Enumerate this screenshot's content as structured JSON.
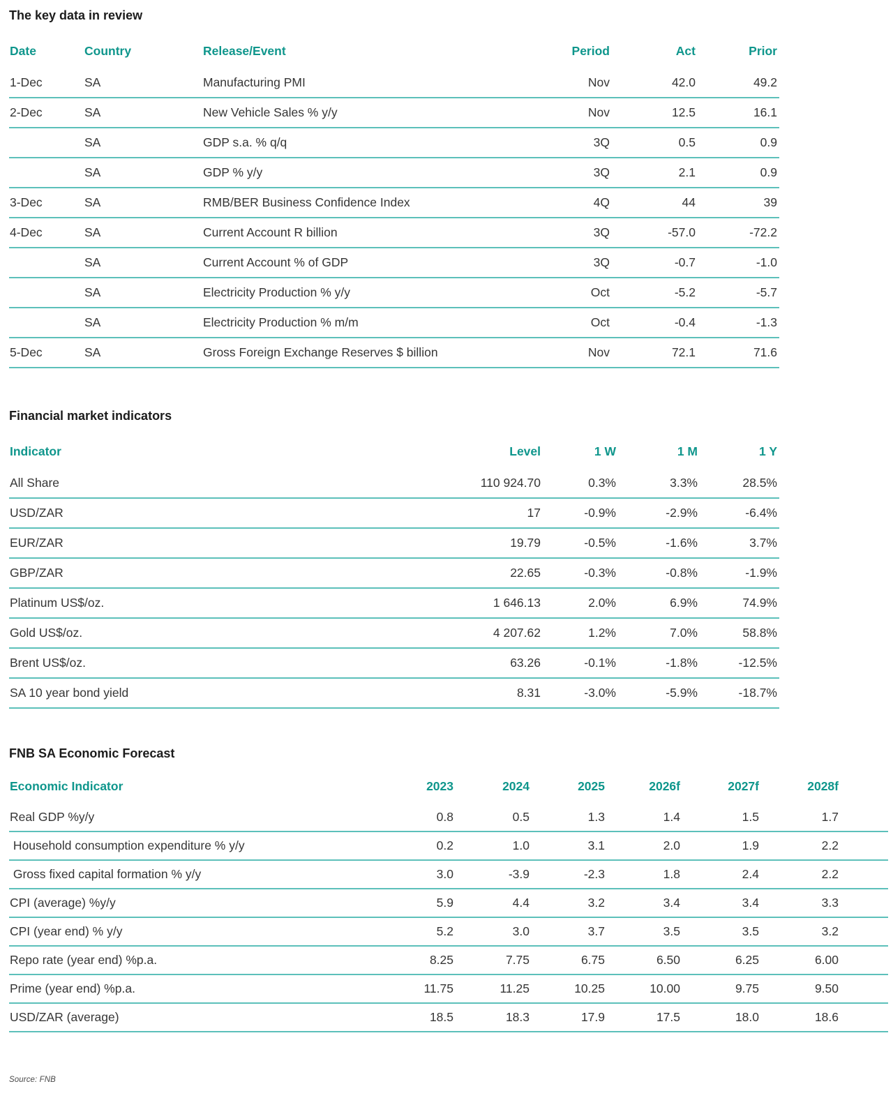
{
  "page": {
    "source_note": "Source: FNB"
  },
  "colors": {
    "accent_teal": "#0f968c",
    "rule_teal": "#5cc0ba",
    "body_text": "#363636"
  },
  "key_data": {
    "title": "The key data in review",
    "columns": [
      "Date",
      "Country",
      "Release/Event",
      "Period",
      "Act",
      "Prior"
    ],
    "rows": [
      [
        "1-Dec",
        "SA",
        "Manufacturing PMI",
        "Nov",
        "42.0",
        "49.2"
      ],
      [
        "2-Dec",
        "SA",
        "New Vehicle Sales % y/y",
        "Nov",
        "12.5",
        "16.1"
      ],
      [
        "",
        "SA",
        "GDP s.a. % q/q",
        "3Q",
        "0.5",
        "0.9"
      ],
      [
        "",
        "SA",
        "GDP % y/y",
        "3Q",
        "2.1",
        "0.9"
      ],
      [
        "3-Dec",
        "SA",
        "RMB/BER Business Confidence Index",
        "4Q",
        "44",
        "39"
      ],
      [
        "4-Dec",
        "SA",
        "Current Account R billion",
        "3Q",
        "-57.0",
        "-72.2"
      ],
      [
        "",
        "SA",
        "Current Account % of GDP",
        "3Q",
        "-0.7",
        "-1.0"
      ],
      [
        "",
        "SA",
        "Electricity Production % y/y",
        "Oct",
        "-5.2",
        "-5.7"
      ],
      [
        "",
        "SA",
        "Electricity Production % m/m",
        "Oct",
        "-0.4",
        "-1.3"
      ],
      [
        "5-Dec",
        "SA",
        "Gross Foreign Exchange Reserves $ billion",
        "Nov",
        "72.1",
        "71.6"
      ]
    ]
  },
  "financial": {
    "title": "Financial market indicators",
    "columns": [
      "Indicator",
      "Level",
      "1 W",
      "1 M",
      "1 Y"
    ],
    "rows": [
      [
        "All Share",
        "110 924.70",
        "0.3%",
        "3.3%",
        "28.5%"
      ],
      [
        "USD/ZAR",
        "17",
        "-0.9%",
        "-2.9%",
        "-6.4%"
      ],
      [
        "EUR/ZAR",
        "19.79",
        "-0.5%",
        "-1.6%",
        "3.7%"
      ],
      [
        "GBP/ZAR",
        "22.65",
        "-0.3%",
        "-0.8%",
        "-1.9%"
      ],
      [
        "Platinum US$/oz.",
        "1 646.13",
        "2.0%",
        "6.9%",
        "74.9%"
      ],
      [
        "Gold US$/oz.",
        "4 207.62",
        "1.2%",
        "7.0%",
        "58.8%"
      ],
      [
        "Brent US$/oz.",
        "63.26",
        "-0.1%",
        "-1.8%",
        "-12.5%"
      ],
      [
        "SA 10 year bond yield",
        "8.31",
        "-3.0%",
        "-5.9%",
        "-18.7%"
      ]
    ]
  },
  "forecast": {
    "title": "FNB SA Economic Forecast",
    "columns": [
      "Economic Indicator",
      "2023",
      "2024",
      "2025",
      "2026f",
      "2027f",
      "2028f"
    ],
    "rows": [
      [
        "Real GDP %y/y",
        "0.8",
        "0.5",
        "1.3",
        "1.4",
        "1.5",
        "1.7"
      ],
      [
        " Household consumption expenditure % y/y",
        "0.2",
        "1.0",
        "3.1",
        "2.0",
        "1.9",
        "2.2"
      ],
      [
        " Gross fixed capital formation % y/y",
        "3.0",
        "-3.9",
        "-2.3",
        "1.8",
        "2.4",
        "2.2"
      ],
      [
        "CPI (average) %y/y",
        "5.9",
        "4.4",
        "3.2",
        "3.4",
        "3.4",
        "3.3"
      ],
      [
        "CPI (year end) % y/y",
        "5.2",
        "3.0",
        "3.7",
        "3.5",
        "3.5",
        "3.2"
      ],
      [
        "Repo rate (year end) %p.a.",
        "8.25",
        "7.75",
        "6.75",
        "6.50",
        "6.25",
        "6.00"
      ],
      [
        "Prime (year end) %p.a.",
        "11.75",
        "11.25",
        "10.25",
        "10.00",
        "9.75",
        "9.50"
      ],
      [
        "USD/ZAR (average)",
        "18.5",
        "18.3",
        "17.9",
        "17.5",
        "18.0",
        "18.6"
      ]
    ]
  }
}
